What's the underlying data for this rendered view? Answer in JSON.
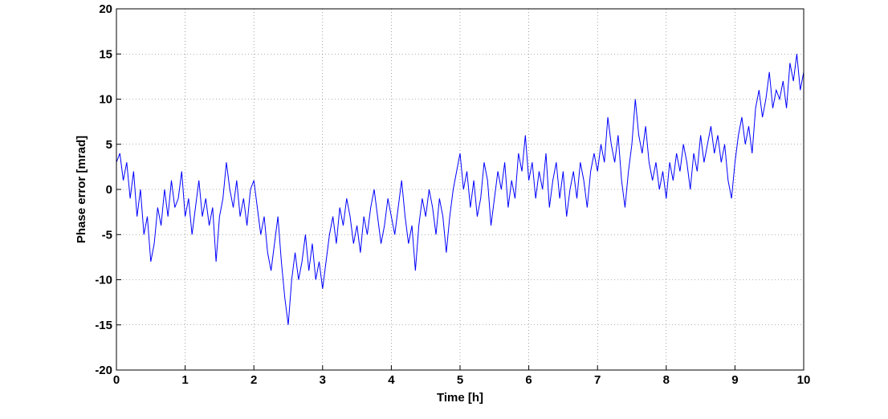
{
  "chart_data": {
    "type": "line",
    "xlabel": "Time [h]",
    "ylabel": "Phase error [mrad]",
    "xlim": [
      0,
      10
    ],
    "xticks": [
      0,
      1,
      2,
      3,
      4,
      5,
      6,
      7,
      8,
      9,
      10
    ],
    "ylim": [
      -20,
      20
    ],
    "yticks": [
      -20,
      -15,
      -10,
      -5,
      0,
      5,
      10,
      15,
      20
    ],
    "grid": true,
    "x": [
      0,
      0.05,
      0.1,
      0.15,
      0.2,
      0.25,
      0.3,
      0.35,
      0.4,
      0.45,
      0.5,
      0.55,
      0.6,
      0.65,
      0.7,
      0.75,
      0.8,
      0.85,
      0.9,
      0.95,
      1,
      1.05,
      1.1,
      1.15,
      1.2,
      1.25,
      1.3,
      1.35,
      1.4,
      1.45,
      1.5,
      1.55,
      1.6,
      1.65,
      1.7,
      1.75,
      1.8,
      1.85,
      1.9,
      1.95,
      2,
      2.05,
      2.1,
      2.15,
      2.2,
      2.25,
      2.3,
      2.35,
      2.4,
      2.45,
      2.5,
      2.55,
      2.6,
      2.65,
      2.7,
      2.75,
      2.8,
      2.85,
      2.9,
      2.95,
      3,
      3.05,
      3.1,
      3.15,
      3.2,
      3.25,
      3.3,
      3.35,
      3.4,
      3.45,
      3.5,
      3.55,
      3.6,
      3.65,
      3.7,
      3.75,
      3.8,
      3.85,
      3.9,
      3.95,
      4,
      4.05,
      4.1,
      4.15,
      4.2,
      4.25,
      4.3,
      4.35,
      4.4,
      4.45,
      4.5,
      4.55,
      4.6,
      4.65,
      4.7,
      4.75,
      4.8,
      4.85,
      4.9,
      4.95,
      5,
      5.05,
      5.1,
      5.15,
      5.2,
      5.25,
      5.3,
      5.35,
      5.4,
      5.45,
      5.5,
      5.55,
      5.6,
      5.65,
      5.7,
      5.75,
      5.8,
      5.85,
      5.9,
      5.95,
      6,
      6.05,
      6.1,
      6.15,
      6.2,
      6.25,
      6.3,
      6.35,
      6.4,
      6.45,
      6.5,
      6.55,
      6.6,
      6.65,
      6.7,
      6.75,
      6.8,
      6.85,
      6.9,
      6.95,
      7,
      7.05,
      7.1,
      7.15,
      7.2,
      7.25,
      7.3,
      7.35,
      7.4,
      7.45,
      7.5,
      7.55,
      7.6,
      7.65,
      7.7,
      7.75,
      7.8,
      7.85,
      7.9,
      7.95,
      8,
      8.05,
      8.1,
      8.15,
      8.2,
      8.25,
      8.3,
      8.35,
      8.4,
      8.45,
      8.5,
      8.55,
      8.6,
      8.65,
      8.7,
      8.75,
      8.8,
      8.85,
      8.9,
      8.95,
      9,
      9.05,
      9.1,
      9.15,
      9.2,
      9.25,
      9.3,
      9.35,
      9.4,
      9.45,
      9.5,
      9.55,
      9.6,
      9.65,
      9.7,
      9.75,
      9.8,
      9.85,
      9.9,
      9.95,
      10
    ],
    "series": [
      {
        "color": "#0000ff",
        "values": [
          3,
          4,
          1,
          3,
          -1,
          2,
          -3,
          0,
          -5,
          -3,
          -8,
          -6,
          -2,
          -4,
          0,
          -3,
          1,
          -2,
          -1,
          2,
          -3,
          -1,
          -5,
          -2,
          1,
          -3,
          -1,
          -4,
          -2,
          -8,
          -3,
          -1,
          3,
          0,
          -2,
          1,
          -3,
          -1,
          -4,
          0,
          1,
          -2,
          -5,
          -3,
          -7,
          -9,
          -6,
          -3,
          -8,
          -12,
          -15,
          -10,
          -7,
          -10,
          -8,
          -5,
          -9,
          -6,
          -10,
          -8,
          -11,
          -8,
          -5,
          -3,
          -6,
          -2,
          -4,
          -1,
          -3,
          -6,
          -4,
          -7,
          -3,
          -5,
          -2,
          0,
          -3,
          -6,
          -4,
          -1,
          -3,
          -5,
          -2,
          1,
          -3,
          -6,
          -4,
          -9,
          -4,
          -1,
          -3,
          0,
          -2,
          -5,
          -1,
          -3,
          -7,
          -3,
          0,
          2,
          4,
          0,
          2,
          -2,
          1,
          -3,
          -1,
          3,
          1,
          -4,
          -1,
          2,
          0,
          3,
          -2,
          1,
          -1,
          4,
          2,
          6,
          1,
          3,
          -1,
          2,
          0,
          4,
          -2,
          1,
          3,
          -1,
          2,
          -3,
          0,
          2,
          -1,
          3,
          1,
          -2,
          2,
          4,
          2,
          5,
          3,
          8,
          5,
          3,
          6,
          1,
          -2,
          2,
          5,
          10,
          6,
          4,
          7,
          3,
          1,
          3,
          0,
          2,
          -1,
          3,
          1,
          4,
          2,
          5,
          3,
          0,
          4,
          2,
          6,
          3,
          5,
          7,
          4,
          6,
          3,
          5,
          1,
          -1,
          3,
          6,
          8,
          5,
          7,
          4,
          9,
          11,
          8,
          10,
          13,
          9,
          11,
          10,
          12,
          9,
          14,
          12,
          15,
          11,
          13
        ]
      }
    ]
  }
}
